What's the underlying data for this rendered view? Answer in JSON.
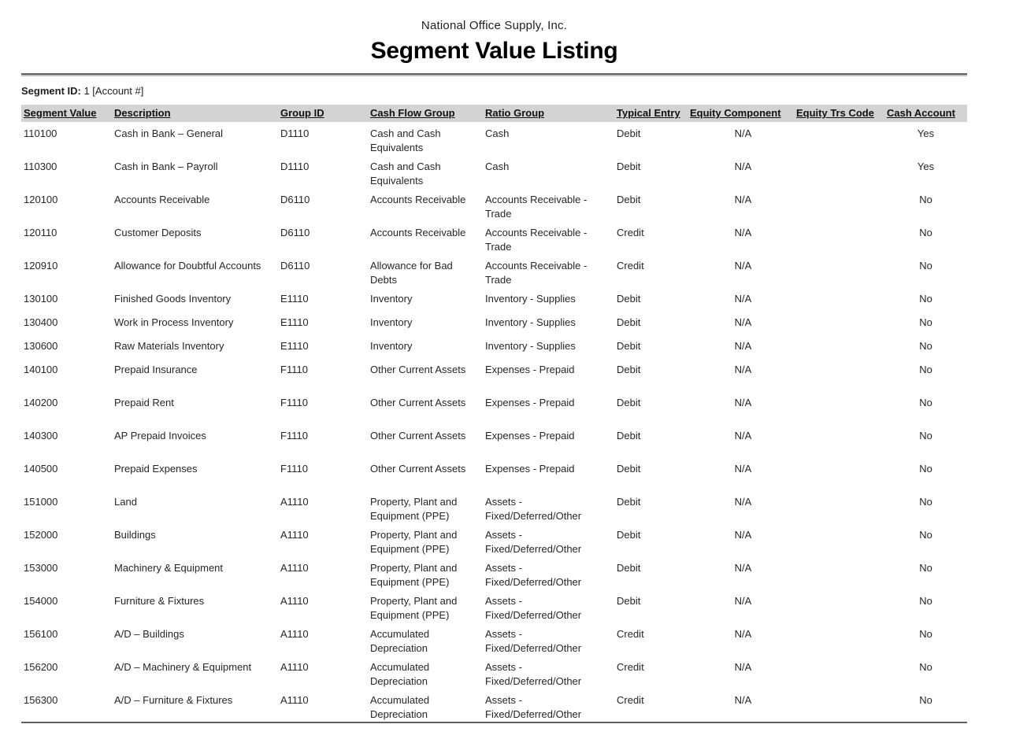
{
  "report": {
    "company": "National Office Supply, Inc.",
    "title": "Segment Value Listing",
    "segment_id_label": "Segment ID:",
    "segment_id_value": "1 [Account #]"
  },
  "colors": {
    "header_bar": "#d3d3d3",
    "rule_dark": "#606060",
    "rule_light": "#c2c2c2",
    "text": "#262626"
  },
  "table": {
    "columns": [
      "Segment Value",
      "Description",
      "Group ID",
      "Cash Flow Group",
      "Ratio Group",
      "Typical Entry",
      "Equity Component",
      "Equity Trs Code",
      "Cash Account"
    ],
    "rows": [
      [
        "110100",
        "Cash in Bank – General",
        "D1110",
        "Cash and Cash Equivalents",
        "Cash",
        "Debit",
        "N/A",
        "",
        "Yes"
      ],
      [
        "110300",
        "Cash in Bank – Payroll",
        "D1110",
        "Cash and Cash Equivalents",
        "Cash",
        "Debit",
        "N/A",
        "",
        "Yes"
      ],
      [
        "120100",
        "Accounts Receivable",
        "D6110",
        "Accounts Receivable",
        "Accounts Receivable - Trade",
        "Debit",
        "N/A",
        "",
        "No"
      ],
      [
        "120110",
        "Customer Deposits",
        "D6110",
        "Accounts Receivable",
        "Accounts Receivable - Trade",
        "Credit",
        "N/A",
        "",
        "No"
      ],
      [
        "120910",
        "Allowance for Doubtful Accounts",
        "D6110",
        "Allowance for Bad Debts",
        "Accounts Receivable - Trade",
        "Credit",
        "N/A",
        "",
        "No"
      ],
      [
        "130100",
        "Finished Goods Inventory",
        "E1110",
        "Inventory",
        "Inventory - Supplies",
        "Debit",
        "N/A",
        "",
        "No"
      ],
      [
        "130400",
        "Work in Process Inventory",
        "E1110",
        "Inventory",
        "Inventory - Supplies",
        "Debit",
        "N/A",
        "",
        "No"
      ],
      [
        "130600",
        "Raw Materials Inventory",
        "E1110",
        "Inventory",
        "Inventory - Supplies",
        "Debit",
        "N/A",
        "",
        "No"
      ],
      [
        "140100",
        "Prepaid Insurance",
        "F1110",
        "Other Current Assets",
        "Expenses - Prepaid",
        "Debit",
        "N/A",
        "",
        "No"
      ],
      [
        "140200",
        "Prepaid Rent",
        "F1110",
        "Other Current Assets",
        "Expenses - Prepaid",
        "Debit",
        "N/A",
        "",
        "No"
      ],
      [
        "140300",
        "AP Prepaid Invoices",
        "F1110",
        "Other Current Assets",
        "Expenses - Prepaid",
        "Debit",
        "N/A",
        "",
        "No"
      ],
      [
        "140500",
        "Prepaid Expenses",
        "F1110",
        "Other Current Assets",
        "Expenses - Prepaid",
        "Debit",
        "N/A",
        "",
        "No"
      ],
      [
        "151000",
        "Land",
        "A1110",
        "Property, Plant and Equipment (PPE)",
        "Assets - Fixed/Deferred/Other",
        "Debit",
        "N/A",
        "",
        "No"
      ],
      [
        "152000",
        "Buildings",
        "A1110",
        "Property, Plant and Equipment (PPE)",
        "Assets - Fixed/Deferred/Other",
        "Debit",
        "N/A",
        "",
        "No"
      ],
      [
        "153000",
        "Machinery & Equipment",
        "A1110",
        "Property, Plant and Equipment (PPE)",
        "Assets - Fixed/Deferred/Other",
        "Debit",
        "N/A",
        "",
        "No"
      ],
      [
        "154000",
        "Furniture & Fixtures",
        "A1110",
        "Property, Plant and Equipment (PPE)",
        "Assets - Fixed/Deferred/Other",
        "Debit",
        "N/A",
        "",
        "No"
      ],
      [
        "156100",
        "A/D – Buildings",
        "A1110",
        "Accumulated Depreciation",
        "Assets - Fixed/Deferred/Other",
        "Credit",
        "N/A",
        "",
        "No"
      ],
      [
        "156200",
        "A/D – Machinery & Equipment",
        "A1110",
        "Accumulated Depreciation",
        "Assets - Fixed/Deferred/Other",
        "Credit",
        "N/A",
        "",
        "No"
      ],
      [
        "156300",
        "A/D – Furniture & Fixtures",
        "A1110",
        "Accumulated Depreciation",
        "Assets - Fixed/Deferred/Other",
        "Credit",
        "N/A",
        "",
        "No"
      ]
    ]
  }
}
